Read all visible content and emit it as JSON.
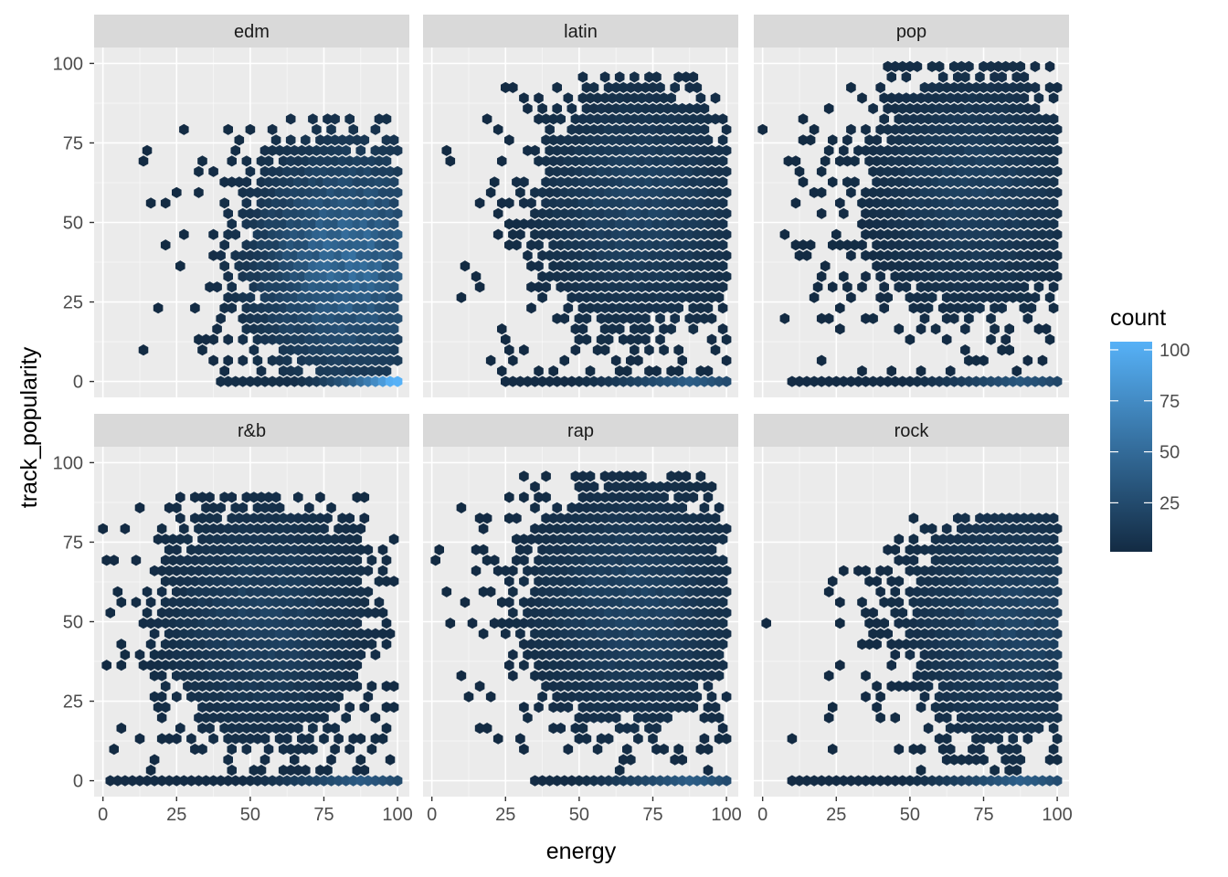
{
  "colors": {
    "panel_bg": "#EBEBEB",
    "strip_bg": "#D9D9D9",
    "grid_major": "#FFFFFF",
    "count_low": "#132B43",
    "count_high": "#56B1F7"
  },
  "chart_data": {
    "type": "hexbin",
    "x_label": "energy",
    "y_label": "track_popularity",
    "xlim": [
      -3,
      104
    ],
    "ylim": [
      -5,
      105
    ],
    "x_ticks": [
      "0",
      "25",
      "50",
      "75",
      "100"
    ],
    "y_ticks": [
      "0",
      "25",
      "50",
      "75",
      "100"
    ],
    "x_tick_values": [
      0,
      25,
      50,
      75,
      100
    ],
    "y_tick_values": [
      0,
      25,
      50,
      75,
      100
    ],
    "facet_layout": "2 rows x 3 columns",
    "grid": true,
    "legend": {
      "title": "count",
      "placement": "right",
      "scale_min": 1,
      "scale_max": 104,
      "ticks": [
        "100",
        "75",
        "50",
        "25"
      ],
      "tick_values": [
        100,
        75,
        50,
        25
      ]
    },
    "facets": [
      {
        "label": "edm",
        "energy_range": [
          12,
          100
        ],
        "popularity_max": 84,
        "peak_count": 104,
        "cluster": {
          "energy": 84,
          "popularity": 38
        },
        "zero_band_energy": [
          38,
          100
        ]
      },
      {
        "label": "latin",
        "energy_range": [
          0,
          100
        ],
        "popularity_max": 98,
        "peak_count": 40,
        "cluster": {
          "energy": 70,
          "popularity": 55
        },
        "zero_band_energy": [
          25,
          100
        ]
      },
      {
        "label": "pop",
        "energy_range": [
          0,
          100
        ],
        "popularity_max": 101,
        "peak_count": 35,
        "cluster": {
          "energy": 72,
          "popularity": 60
        },
        "zero_band_energy": [
          10,
          100
        ]
      },
      {
        "label": "r&b",
        "energy_range": [
          0,
          100
        ],
        "popularity_max": 92,
        "peak_count": 38,
        "cluster": {
          "energy": 55,
          "popularity": 50
        },
        "zero_band_energy": [
          2,
          100
        ]
      },
      {
        "label": "rap",
        "energy_range": [
          0,
          100
        ],
        "popularity_max": 98,
        "peak_count": 40,
        "cluster": {
          "energy": 68,
          "popularity": 55
        },
        "zero_band_energy": [
          35,
          100
        ]
      },
      {
        "label": "rock",
        "energy_range": [
          0,
          100
        ],
        "popularity_max": 84,
        "peak_count": 42,
        "cluster": {
          "energy": 85,
          "popularity": 50
        },
        "zero_band_energy": [
          10,
          100
        ]
      }
    ]
  }
}
